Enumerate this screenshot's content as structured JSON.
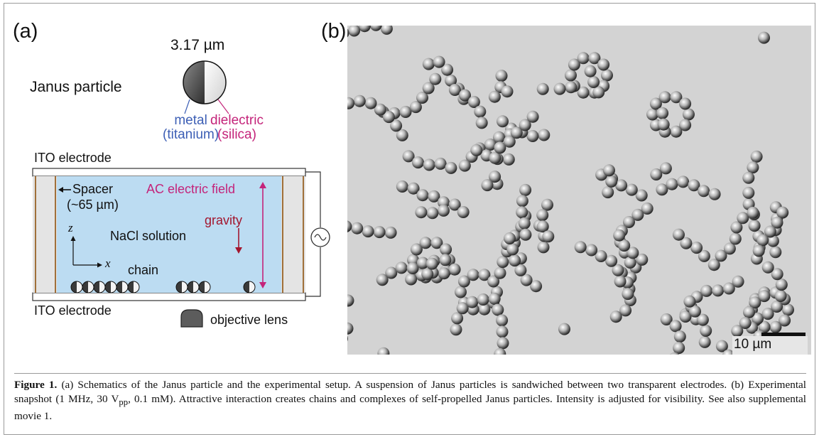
{
  "panel_a": {
    "label": "(a)",
    "particle_size": "3.17 µm",
    "particle_title": "Janus particle",
    "metal_line1": "metal",
    "metal_line2": "(titanium)",
    "dielectric_line1": "dielectric",
    "dielectric_line2": "(silica)",
    "top_electrode": "ITO electrode",
    "bottom_electrode": "ITO electrode",
    "spacer_line1": "Spacer",
    "spacer_line2": "(~65 µm)",
    "ac_field": "AC electric field",
    "gravity": "gravity",
    "solution": "NaCl solution",
    "axis_z": "z",
    "axis_x": "x",
    "chain": "chain",
    "objective": "objective lens",
    "colors": {
      "metal_blue": "#3d5fb5",
      "dielectric_magenta": "#c4247a",
      "gravity_red": "#a3162e",
      "solution_blue": "#bcdcf2"
    }
  },
  "panel_b": {
    "label": "(b)",
    "scale_bar": "10 µm"
  },
  "caption": {
    "figure_label": "Figure 1.",
    "text": "(a) Schematics of the Janus particle and the experimental setup. A suspension of Janus particles is sandwiched between two transparent electrodes. (b) Experimental snapshot (1 MHz, 30 V_pp, 0.1 mM). Attractive interaction creates chains and complexes of self-propelled Janus particles. Intensity is adjusted for visibility. See also supplemental movie 1."
  }
}
